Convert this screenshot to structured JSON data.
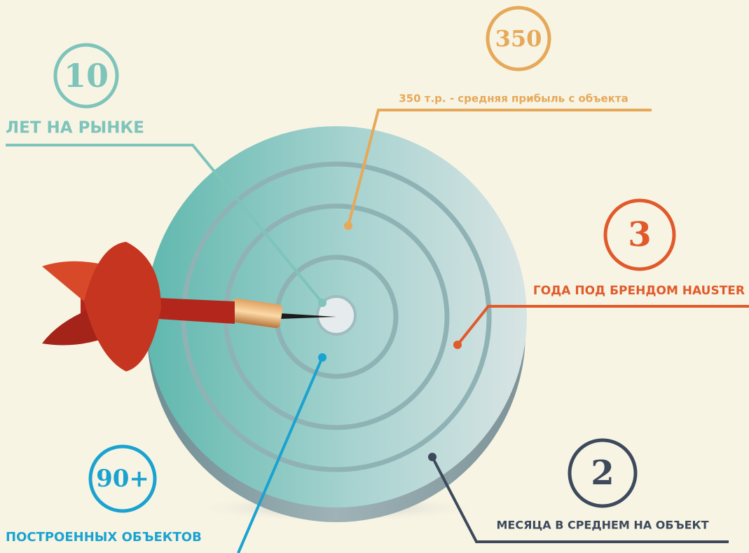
{
  "callouts": [
    {
      "number": "10",
      "label": "ЛЕТ НА РЫНКЕ"
    },
    {
      "number": "350",
      "label": "350 т.р. - средняя прибыль с объекта"
    },
    {
      "number": "3",
      "label": "ГОДА ПОД БРЕНДОМ HAUSTER"
    },
    {
      "number": "2",
      "label": "МЕСЯЦА В СРЕДНЕМ НА ОБЪЕКТ"
    },
    {
      "number": "90+",
      "label": "ПОСТРОЕННЫХ ОБЪЕКТОВ"
    }
  ]
}
